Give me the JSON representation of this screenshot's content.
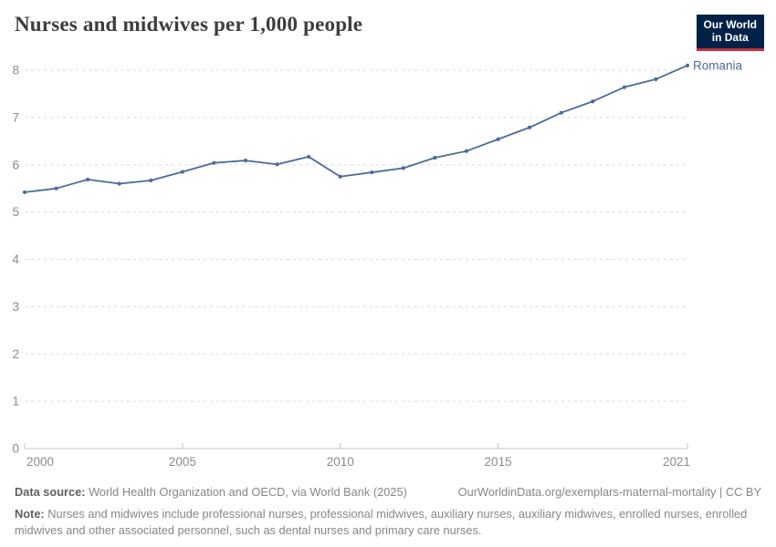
{
  "header": {
    "title": "Nurses and midwives per 1,000 people",
    "logo": {
      "line1": "Our World",
      "line2": "in Data"
    }
  },
  "chart_data": {
    "type": "line",
    "title": "Nurses and midwives per 1,000 people",
    "x": [
      2000,
      2001,
      2002,
      2003,
      2004,
      2005,
      2006,
      2007,
      2008,
      2009,
      2010,
      2011,
      2012,
      2013,
      2014,
      2015,
      2016,
      2017,
      2018,
      2019,
      2020,
      2021
    ],
    "series": [
      {
        "name": "Romania",
        "color": "#4c6a9c",
        "values": [
          5.42,
          5.5,
          5.69,
          5.6,
          5.67,
          5.85,
          6.04,
          6.09,
          6.01,
          6.17,
          5.75,
          5.84,
          5.93,
          6.15,
          6.29,
          6.54,
          6.79,
          7.1,
          7.34,
          7.64,
          7.81,
          8.1
        ]
      }
    ],
    "xlabel": "",
    "ylabel": "",
    "xlim": [
      2000,
      2021
    ],
    "ylim": [
      0,
      8
    ],
    "x_ticks": [
      2000,
      2005,
      2010,
      2015,
      2021
    ],
    "y_ticks": [
      0,
      1,
      2,
      3,
      4,
      5,
      6,
      7,
      8
    ],
    "grid": "horizontal-dashed",
    "legend_position": "end-of-line-label"
  },
  "footer": {
    "data_source_label": "Data source:",
    "data_source_text": " World Health Organization and OECD, via World Bank (2025)",
    "link": "OurWorldinData.org/exemplars-maternal-mortality | CC BY",
    "note_label": "Note:",
    "note_text": " Nurses and midwives include professional nurses, professional midwives, auxiliary nurses, auxiliary midwives, enrolled nurses, enrolled midwives and other associated personnel, such as dental nurses and primary care nurses."
  },
  "colors": {
    "background": "#ffffff",
    "accent": "#4c6a9c",
    "title_color": "#3d3d3d",
    "grid": "#dadada",
    "axis": "#c4c4c4",
    "tick_label": "#8b8b8b",
    "footer_color": "#878787",
    "footer_bold": "#5f5f5f",
    "logo_bg": "#002147",
    "logo_red": "#c5303e"
  }
}
